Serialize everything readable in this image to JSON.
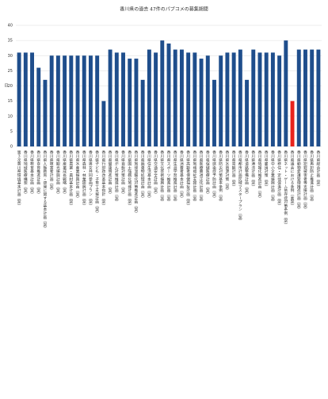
{
  "chart_data": {
    "type": "bar",
    "title": "香川県の過去 47件のパブコメの募集期間",
    "y_label": "日",
    "categories": [
      "第３次香川県環境基本計画（案）",
      "香川県地域医療構想（案）",
      "香川県教育基本計画（案）",
      "香川県食育推進計画（案）",
      "香川県人権教育・啓発に関する基本計画（案）",
      "香川県障害者計画（案）",
      "香川県観光振興計画（案）",
      "香川県産業成長戦略（案）",
      "香川県農業・農村基本計画（案）",
      "香川県水産業振興計画（案）",
      "香川県森林・林業振興計画（案）",
      "香川県男女共同参画プラン（案）",
      "香川県子ども・子育て支援計画（案）",
      "香川県行財政改革基本指針（案）",
      "香川県健康増進計画（案）",
      "香川県がん対策推進計画（案）",
      "香川県自殺対策計画（案）",
      "香川県国土強靱化地域計画（案）",
      "香川県地球温暖化対策推進計画（案）",
      "香川県廃棄物処理計画（案）",
      "香川県住生活基本計画（案）",
      "香川県交通安全計画（案）",
      "香川県文化芸術振興計画（案）",
      "香川県スポーツ推進計画（案）",
      "香川県生涯学習推進計画（案）",
      "香川県消費者基本計画（案）",
      "香川県高齢者保健福祉計画（案）",
      "香川県地域福祉支援計画（案）",
      "香川県医療費適正化計画（案）",
      "香川県保健医療計画（案）",
      "香川県感染症予防計画（案）",
      "香川県防災対策基本条例（案）",
      "香川県水資源対策（案）",
      "香川県景観計画（案）",
      "香川県都市計画区域マスタープラン（案）",
      "香川県道路整備計画（案）",
      "香川県港湾計画（案）",
      "香川県情報化推進計画（案）",
      "香川県雇用対策（案）",
      "香川県中小企業振興計画（案）",
      "香川県移住・定住促進計画（案）",
      "香川県ネット・ゲーム依存症対策条例（案）",
      "香川県議会における条例（素案）",
      "香川県動物愛護管理推進計画（案）",
      "香川県犯罪被害者等支援計画（案）",
      "香川県再犯防止推進計画（案）",
      "香川県総合計画（案）"
    ],
    "values": [
      31,
      31,
      31,
      26,
      22,
      30,
      30,
      30,
      30,
      30,
      30,
      30,
      30,
      15,
      32,
      31,
      31,
      29,
      29,
      22,
      32,
      31,
      35,
      34,
      32,
      32,
      31,
      31,
      29,
      30,
      22,
      30,
      31,
      31,
      32,
      22,
      32,
      31,
      31,
      31,
      30,
      35,
      15,
      32,
      32,
      32,
      32
    ],
    "color": "#1f4e8c",
    "highlight_color": "#e8231c",
    "highlight": [
      42
    ],
    "ylim": [
      0,
      40
    ],
    "yticks": [
      0,
      5,
      10,
      15,
      20,
      25,
      30,
      35,
      40
    ],
    "grid": true
  }
}
